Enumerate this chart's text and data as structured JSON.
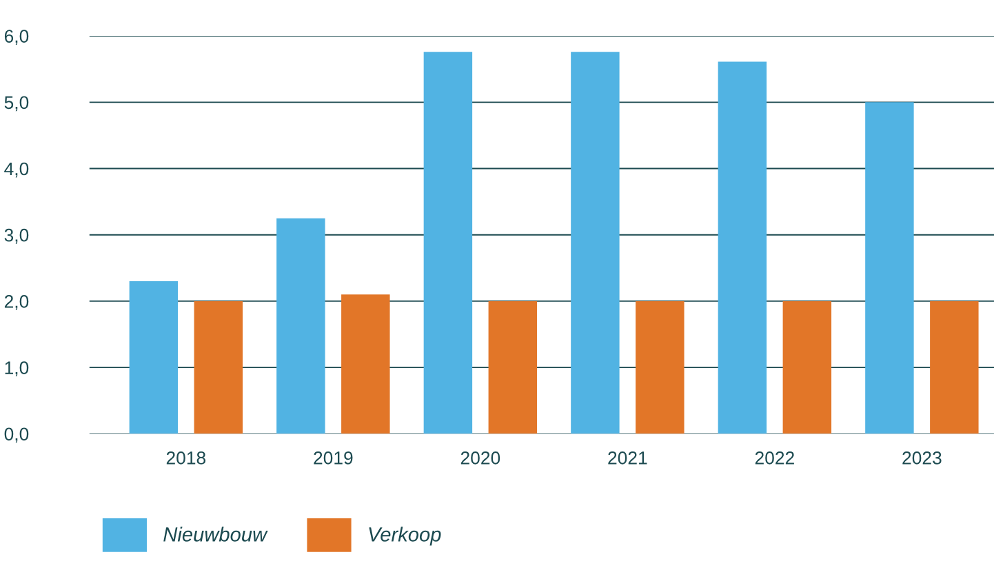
{
  "chart_data": {
    "type": "bar",
    "categories": [
      "2018",
      "2019",
      "2020",
      "2021",
      "2022",
      "2023"
    ],
    "series": [
      {
        "name": "Nieuwbouw",
        "color": "#51b3e3",
        "values": [
          2.3,
          3.25,
          5.76,
          5.76,
          5.61,
          5.0
        ]
      },
      {
        "name": "Verkoop",
        "color": "#e27628",
        "values": [
          2.0,
          2.1,
          2.0,
          2.0,
          2.0,
          2.0
        ]
      }
    ],
    "ylim": [
      0,
      6
    ],
    "yticks": [
      {
        "value": 0,
        "label": "0,0"
      },
      {
        "value": 1,
        "label": "1,0"
      },
      {
        "value": 2,
        "label": "2,0"
      },
      {
        "value": 3,
        "label": "3,0"
      },
      {
        "value": 4,
        "label": "4,0"
      },
      {
        "value": 5,
        "label": "5,0"
      },
      {
        "value": 6,
        "label": "6,0"
      }
    ],
    "grid": "y",
    "legend": "bottom left"
  }
}
